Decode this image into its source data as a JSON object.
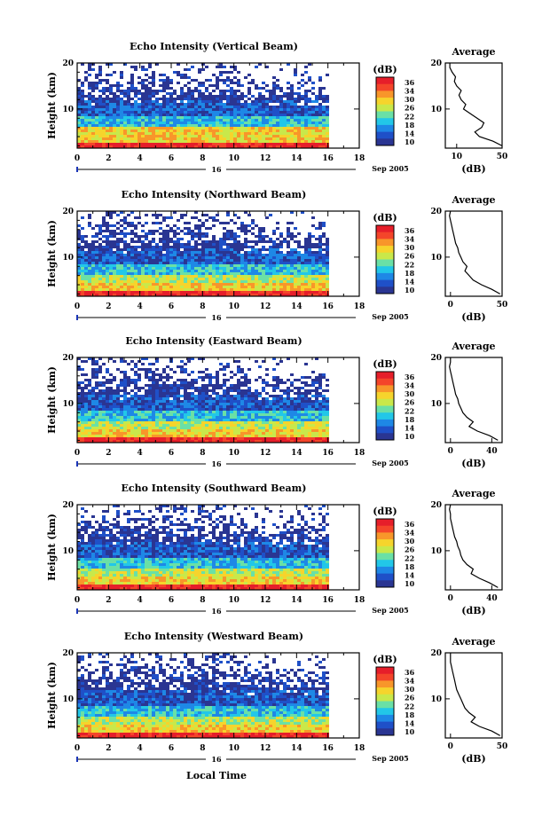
{
  "figure": {
    "xlabel": "Local Time",
    "date_label": "Sep 2005",
    "day_label": "16"
  },
  "colorbar": {
    "unit": "(dB)",
    "ticks": [
      "36",
      "34",
      "30",
      "26",
      "22",
      "18",
      "14",
      "10"
    ],
    "colors": [
      "#2a3592",
      "#1f50c8",
      "#1e88e6",
      "#22c7e8",
      "#6ae0a6",
      "#c9e84a",
      "#f6d42c",
      "#f8962a",
      "#f4452a",
      "#e61e2a"
    ]
  },
  "chart_data": [
    {
      "type": "heatmap",
      "title": "Echo Intensity (Vertical Beam)",
      "ylabel": "Height (km)",
      "xlabel": "",
      "xlim": [
        0,
        18
      ],
      "xticks": [
        "0",
        "2",
        "4",
        "6",
        "8",
        "10",
        "12",
        "14",
        "16",
        "18"
      ],
      "ylim": [
        1.5,
        20
      ],
      "yticks": [
        "10",
        "20"
      ],
      "data_end_x": 16,
      "profile": {
        "title": "Average",
        "xlabel": "(dB)",
        "xlim": [
          0,
          50
        ],
        "xticks": [
          "10",
          "50"
        ],
        "height": [
          2,
          3,
          4,
          5,
          6,
          7,
          8,
          9,
          10,
          11,
          12,
          13,
          14,
          15,
          16,
          17,
          18,
          19,
          20
        ],
        "db": [
          50,
          42,
          30,
          26,
          32,
          34,
          28,
          22,
          16,
          18,
          14,
          12,
          14,
          10,
          8,
          9,
          6,
          4,
          4
        ]
      }
    },
    {
      "type": "heatmap",
      "title": "Echo Intensity (Northward Beam)",
      "ylabel": "Height (km)",
      "xlabel": "",
      "xlim": [
        0,
        18
      ],
      "xticks": [
        "0",
        "2",
        "4",
        "6",
        "8",
        "10",
        "12",
        "14",
        "16",
        "18"
      ],
      "ylim": [
        1.5,
        20
      ],
      "yticks": [
        "10",
        "20"
      ],
      "data_end_x": 16,
      "profile": {
        "title": "Average",
        "xlabel": "(dB)",
        "xlim": [
          -5,
          50
        ],
        "xticks": [
          "0",
          "50"
        ],
        "height": [
          2,
          3,
          4,
          5,
          6,
          7,
          8,
          9,
          10,
          11,
          12,
          13,
          14,
          15,
          16,
          17,
          18,
          19,
          20
        ],
        "db": [
          48,
          40,
          30,
          22,
          18,
          14,
          16,
          12,
          10,
          8,
          7,
          5,
          4,
          3,
          2,
          1,
          0,
          -1,
          0
        ]
      }
    },
    {
      "type": "heatmap",
      "title": "Echo Intensity (Eastward Beam)",
      "ylabel": "Height (km)",
      "xlabel": "",
      "xlim": [
        0,
        18
      ],
      "xticks": [
        "0",
        "2",
        "4",
        "6",
        "8",
        "10",
        "12",
        "14",
        "16",
        "18"
      ],
      "ylim": [
        1.5,
        20
      ],
      "yticks": [
        "10",
        "20"
      ],
      "data_end_x": 16,
      "profile": {
        "title": "Average",
        "xlabel": "(dB)",
        "xlim": [
          -5,
          50
        ],
        "xticks": [
          "0",
          "40"
        ],
        "height": [
          2,
          3,
          4,
          5,
          6,
          7,
          8,
          9,
          10,
          11,
          12,
          13,
          14,
          15,
          16,
          17,
          18,
          19,
          20
        ],
        "db": [
          46,
          38,
          26,
          18,
          22,
          16,
          12,
          10,
          8,
          7,
          5,
          4,
          3,
          2,
          1,
          0,
          -1,
          0,
          0
        ]
      }
    },
    {
      "type": "heatmap",
      "title": "Echo Intensity (Southward Beam)",
      "ylabel": "Height (km)",
      "xlabel": "",
      "xlim": [
        0,
        18
      ],
      "xticks": [
        "0",
        "2",
        "4",
        "6",
        "8",
        "10",
        "12",
        "14",
        "16",
        "18"
      ],
      "ylim": [
        1.5,
        20
      ],
      "yticks": [
        "10",
        "20"
      ],
      "data_end_x": 16,
      "profile": {
        "title": "Average",
        "xlabel": "(dB)",
        "xlim": [
          -5,
          50
        ],
        "xticks": [
          "0",
          "40"
        ],
        "height": [
          2,
          3,
          4,
          5,
          6,
          7,
          8,
          9,
          10,
          11,
          12,
          13,
          14,
          15,
          16,
          17,
          18,
          19,
          20
        ],
        "db": [
          46,
          38,
          28,
          20,
          22,
          16,
          12,
          10,
          9,
          7,
          6,
          4,
          3,
          2,
          1,
          0,
          0,
          -1,
          0
        ]
      }
    },
    {
      "type": "heatmap",
      "title": "Echo Intensity (Westward Beam)",
      "ylabel": "Height (km)",
      "xlabel": "Local Time",
      "xlim": [
        0,
        18
      ],
      "xticks": [
        "0",
        "2",
        "4",
        "6",
        "8",
        "10",
        "12",
        "14",
        "16",
        "18"
      ],
      "ylim": [
        1.5,
        20
      ],
      "yticks": [
        "10",
        "20"
      ],
      "data_end_x": 16,
      "profile": {
        "title": "Average",
        "xlabel": "(dB)",
        "xlim": [
          -5,
          50
        ],
        "xticks": [
          "0",
          "50"
        ],
        "height": [
          2,
          3,
          4,
          5,
          6,
          7,
          8,
          9,
          10,
          11,
          12,
          13,
          14,
          15,
          16,
          17,
          18,
          19,
          20
        ],
        "db": [
          48,
          40,
          28,
          20,
          24,
          18,
          14,
          12,
          10,
          8,
          6,
          5,
          4,
          3,
          2,
          1,
          0,
          0,
          0
        ]
      }
    }
  ]
}
